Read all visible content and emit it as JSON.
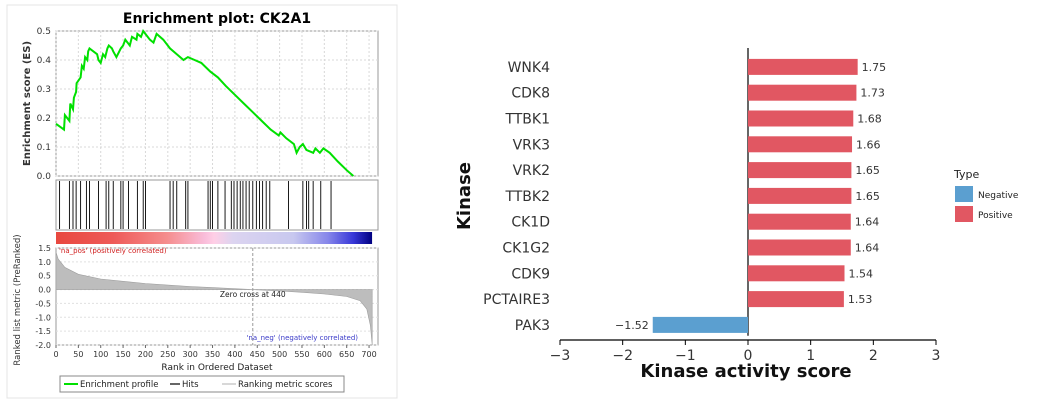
{
  "chart_data": [
    {
      "type": "line",
      "title": "Enrichment plot: CK2A1",
      "ylabel": "Enrichment score (ES)",
      "xlabel": "Rank in Ordered Dataset",
      "ylabel2": "Ranked list metric (PreRanked)",
      "ylim": [
        0,
        0.5
      ],
      "xlim": [
        0,
        720
      ],
      "xticks": [
        0,
        50,
        100,
        150,
        200,
        250,
        300,
        350,
        400,
        450,
        500,
        550,
        600,
        650,
        700
      ],
      "yticks": [
        "0.0",
        "0.1",
        "0.2",
        "0.3",
        "0.4",
        "0.5"
      ],
      "yticks2": [
        "1.5",
        "1.0",
        "0.5",
        "0.0",
        "-0.5",
        "-1.0",
        "-1.5",
        "-2.0"
      ],
      "ylim2": [
        -2.0,
        1.5
      ],
      "pos_label": "'na_pos' (positively correlated)",
      "neg_label": "'na_neg' (negatively correlated)",
      "zero_cross_label": "Zero cross at 440",
      "zero_cross": 440,
      "legend": [
        "Enrichment profile",
        "Hits",
        "Ranking metric scores"
      ],
      "colors": {
        "profile": "#00e000",
        "hits": "#000000",
        "metric": "#bdbdbd",
        "pos_label": "#d01c1c",
        "neg_label": "#3a3ac8"
      },
      "hits": [
        8,
        30,
        38,
        45,
        55,
        68,
        75,
        95,
        112,
        118,
        128,
        145,
        150,
        162,
        182,
        195,
        200,
        255,
        262,
        270,
        290,
        295,
        340,
        345,
        350,
        362,
        378,
        392,
        398,
        405,
        412,
        418,
        425,
        432,
        440,
        448,
        455,
        462,
        470,
        478,
        520,
        552,
        560,
        565,
        575,
        592,
        615
      ],
      "es_points": [
        [
          0,
          0.18
        ],
        [
          18,
          0.16
        ],
        [
          20,
          0.21
        ],
        [
          30,
          0.19
        ],
        [
          32,
          0.25
        ],
        [
          38,
          0.23
        ],
        [
          40,
          0.27
        ],
        [
          45,
          0.29
        ],
        [
          46,
          0.32
        ],
        [
          55,
          0.34
        ],
        [
          58,
          0.38
        ],
        [
          62,
          0.37
        ],
        [
          65,
          0.41
        ],
        [
          70,
          0.4
        ],
        [
          72,
          0.43
        ],
        [
          75,
          0.44
        ],
        [
          92,
          0.42
        ],
        [
          95,
          0.4
        ],
        [
          100,
          0.39
        ],
        [
          105,
          0.42
        ],
        [
          110,
          0.41
        ],
        [
          115,
          0.44
        ],
        [
          118,
          0.45
        ],
        [
          125,
          0.44
        ],
        [
          128,
          0.43
        ],
        [
          135,
          0.41
        ],
        [
          145,
          0.44
        ],
        [
          150,
          0.45
        ],
        [
          155,
          0.47
        ],
        [
          165,
          0.45
        ],
        [
          170,
          0.48
        ],
        [
          180,
          0.47
        ],
        [
          182,
          0.49
        ],
        [
          190,
          0.48
        ],
        [
          195,
          0.5
        ],
        [
          200,
          0.49
        ],
        [
          210,
          0.47
        ],
        [
          218,
          0.46
        ],
        [
          225,
          0.49
        ],
        [
          240,
          0.47
        ],
        [
          255,
          0.44
        ],
        [
          270,
          0.42
        ],
        [
          285,
          0.4
        ],
        [
          295,
          0.41
        ],
        [
          310,
          0.4
        ],
        [
          325,
          0.39
        ],
        [
          345,
          0.36
        ],
        [
          362,
          0.34
        ],
        [
          380,
          0.31
        ],
        [
          400,
          0.28
        ],
        [
          420,
          0.25
        ],
        [
          440,
          0.22
        ],
        [
          460,
          0.19
        ],
        [
          480,
          0.16
        ],
        [
          498,
          0.14
        ],
        [
          502,
          0.15
        ],
        [
          515,
          0.13
        ],
        [
          532,
          0.11
        ],
        [
          538,
          0.08
        ],
        [
          545,
          0.1
        ],
        [
          552,
          0.11
        ],
        [
          560,
          0.09
        ],
        [
          575,
          0.08
        ],
        [
          580,
          0.095
        ],
        [
          590,
          0.08
        ],
        [
          598,
          0.095
        ],
        [
          612,
          0.08
        ],
        [
          630,
          0.05
        ],
        [
          650,
          0.02
        ],
        [
          665,
          0.0
        ]
      ],
      "metric_points": [
        [
          0,
          1.35
        ],
        [
          5,
          1.1
        ],
        [
          20,
          0.8
        ],
        [
          50,
          0.55
        ],
        [
          100,
          0.38
        ],
        [
          150,
          0.3
        ],
        [
          200,
          0.22
        ],
        [
          250,
          0.16
        ],
        [
          300,
          0.11
        ],
        [
          350,
          0.07
        ],
        [
          400,
          0.03
        ],
        [
          440,
          0.0
        ],
        [
          500,
          -0.05
        ],
        [
          550,
          -0.1
        ],
        [
          600,
          -0.16
        ],
        [
          650,
          -0.25
        ],
        [
          680,
          -0.4
        ],
        [
          695,
          -0.7
        ],
        [
          703,
          -1.3
        ],
        [
          707,
          -2.0
        ]
      ],
      "heat_stops": [
        [
          "#e8483f",
          0
        ],
        [
          "#ee5a58",
          0.18
        ],
        [
          "#f58d8d",
          0.35
        ],
        [
          "#f9bdda",
          0.47
        ],
        [
          "#ffcfe6",
          0.5
        ],
        [
          "#dcd4f0",
          0.56
        ],
        [
          "#c8c8ef",
          0.75
        ],
        [
          "#8686ea",
          0.86
        ],
        [
          "#3838d8",
          0.94
        ],
        [
          "#000080",
          1.0
        ]
      ]
    },
    {
      "type": "bar",
      "orientation": "horizontal",
      "xlabel": "Kinase activity score",
      "ylabel": "Kinase",
      "xlim": [
        -3,
        3
      ],
      "xticks": [
        "−3",
        "−2",
        "−1",
        "0",
        "1",
        "2",
        "3"
      ],
      "categories": [
        "WNK4",
        "CDK8",
        "TTBK1",
        "VRK3",
        "VRK2",
        "TTBK2",
        "CK1D",
        "CK1G2",
        "CDK9",
        "PCTAIRE3",
        "PAK3"
      ],
      "values": [
        1.75,
        1.73,
        1.68,
        1.66,
        1.65,
        1.65,
        1.64,
        1.64,
        1.54,
        1.53,
        -1.52
      ],
      "value_labels": [
        "1.75",
        "1.73",
        "1.68",
        "1.66",
        "1.65",
        "1.65",
        "1.64",
        "1.64",
        "1.54",
        "1.53",
        "−1.52"
      ],
      "types": [
        "Positive",
        "Positive",
        "Positive",
        "Positive",
        "Positive",
        "Positive",
        "Positive",
        "Positive",
        "Positive",
        "Positive",
        "Negative"
      ],
      "legend_title": "Type",
      "legend": [
        {
          "name": "Negative",
          "color": "#5b9fd0"
        },
        {
          "name": "Positive",
          "color": "#e15762"
        }
      ]
    }
  ]
}
